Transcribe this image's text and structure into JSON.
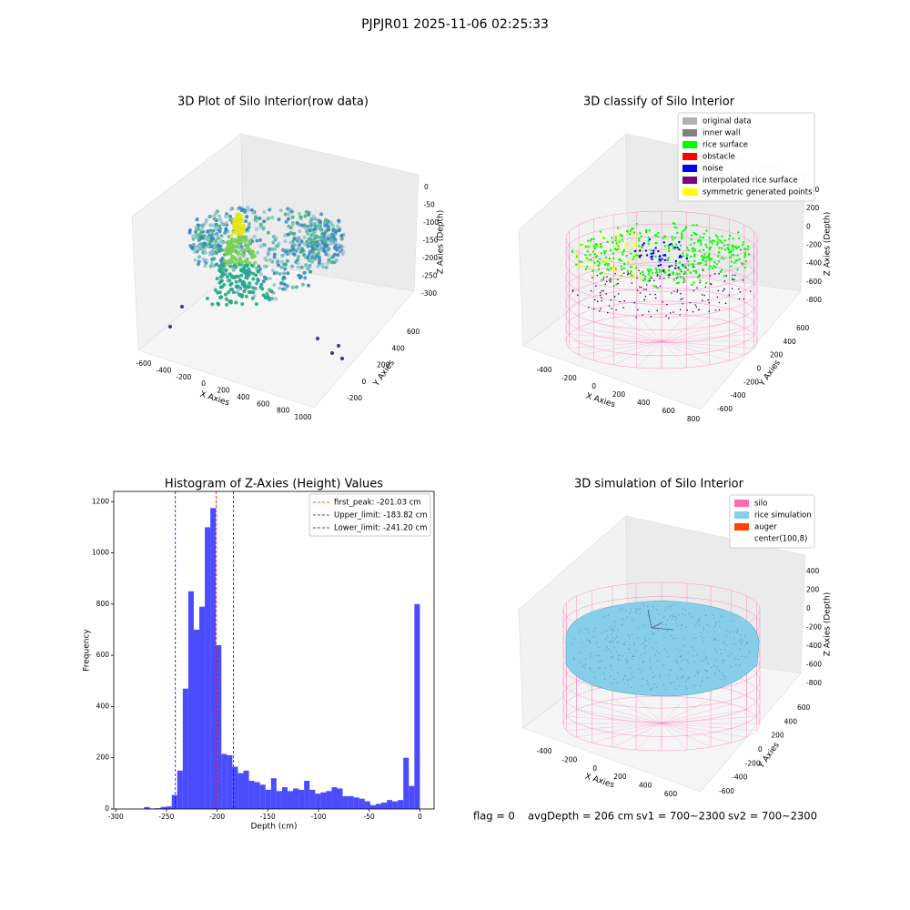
{
  "title": "PJPJR01 2025-11-06 02:25:33",
  "chart_data": [
    {
      "type": "scatter3d",
      "title": "3D Plot of Silo Interior(row data)",
      "xlabel": "X Axies",
      "ylabel": "Y Axies",
      "zlabel": "Z Axies (Depth)",
      "xticks": [
        -600,
        -400,
        -200,
        0,
        200,
        400,
        600,
        800,
        1000
      ],
      "yticks": [
        -200,
        0,
        200,
        400,
        600
      ],
      "zticks": [
        0,
        -50,
        -100,
        -150,
        -200,
        -250,
        -300
      ]
    },
    {
      "type": "classify3d",
      "title": "3D classify of Silo Interior",
      "xlabel": "X Axies",
      "ylabel": "Y Axies",
      "zlabel": "Z Axies (Depth)",
      "xticks": [
        -400,
        -200,
        0,
        200,
        400,
        600,
        800
      ],
      "yticks": [
        -600,
        -400,
        -200,
        0,
        200,
        400,
        600
      ],
      "zticks": [
        400,
        200,
        0,
        -200,
        -400,
        -600,
        -800
      ],
      "legend": [
        {
          "name": "original data",
          "color": "#b0b0b0"
        },
        {
          "name": "inner wall",
          "color": "#808080"
        },
        {
          "name": "rice surface",
          "color": "#00ff00"
        },
        {
          "name": "obstacle",
          "color": "#ff0000"
        },
        {
          "name": "noise",
          "color": "#0000ff"
        },
        {
          "name": "interpolated rice surface",
          "color": "#800080"
        },
        {
          "name": "symmetric generated points",
          "color": "#ffff00"
        }
      ]
    },
    {
      "type": "histogram",
      "title": "Histogram of Z-Axies (Height) Values",
      "xlabel": "Depth (cm)",
      "ylabel": "Frequency",
      "color": "#0000ff",
      "alpha": 0.7,
      "bins": [
        -272,
        -266.56,
        -261.12,
        -255.68,
        -250.24,
        -244.8,
        -239.36,
        -233.92,
        -228.48,
        -223.04,
        -217.6,
        -212.16,
        -206.72,
        -201.28,
        -195.84,
        -190.4,
        -184.96,
        -179.52,
        -174.08,
        -168.64,
        -163.2,
        -157.76,
        -152.32,
        -146.88,
        -141.44,
        -136,
        -130.56,
        -125.12,
        -119.68,
        -114.24,
        -108.8,
        -103.36,
        -97.92,
        -92.48,
        -87.04,
        -81.6,
        -76.16,
        -70.72,
        -65.28,
        -59.84,
        -54.4,
        -48.96,
        -43.52,
        -38.08,
        -32.64,
        -27.2,
        -21.76,
        -16.32,
        -10.88,
        -5.44,
        0
      ],
      "values": [
        8,
        2,
        3,
        8,
        10,
        55,
        150,
        470,
        850,
        700,
        790,
        1100,
        1175,
        640,
        215,
        210,
        165,
        140,
        150,
        110,
        105,
        95,
        75,
        120,
        70,
        85,
        70,
        80,
        75,
        110,
        75,
        60,
        65,
        70,
        85,
        80,
        50,
        50,
        45,
        40,
        30,
        15,
        20,
        25,
        35,
        30,
        35,
        200,
        90,
        800
      ],
      "xlim": [
        -302,
        14
      ],
      "ylim": [
        0,
        1240
      ],
      "xticks": [
        -300,
        -250,
        -200,
        -150,
        -100,
        -50,
        0
      ],
      "yticks": [
        0,
        200,
        400,
        600,
        800,
        1000,
        1200
      ],
      "lines": [
        {
          "name": "first_peak: -201.03 cm",
          "value": -201.03,
          "color": "#ff0000"
        },
        {
          "name": "Upper_limit: -183.82 cm",
          "value": -183.82,
          "color": "#0000ff"
        },
        {
          "name": "Lower_limit: -241.20 cm",
          "value": -241.2,
          "color": "#0000ff"
        }
      ],
      "legend_loc": "upper right"
    },
    {
      "type": "simulation3d",
      "title": "3D simulation of Silo Interior",
      "xlabel": "X Axies",
      "ylabel": "Y Axies",
      "zlabel": "Z Axies (Depth)",
      "xticks": [
        -400,
        -200,
        0,
        200,
        400,
        600
      ],
      "yticks": [
        -600,
        -400,
        -200,
        0,
        200,
        400,
        600
      ],
      "zticks": [
        400,
        200,
        0,
        -200,
        -400,
        -600,
        -800
      ],
      "legend": [
        {
          "name": "silo",
          "color": "#ff69b4"
        },
        {
          "name": "rice simulation",
          "color": "#87ceeb"
        },
        {
          "name": "auger",
          "color": "#ff4500"
        },
        {
          "name": "center(100,8)",
          "color": "#ffffff"
        }
      ]
    }
  ],
  "footer": [
    "flag = 0",
    "avgDepth = 206 cm",
    "sv1 = 700~2300",
    "sv2 = 700~2300"
  ]
}
